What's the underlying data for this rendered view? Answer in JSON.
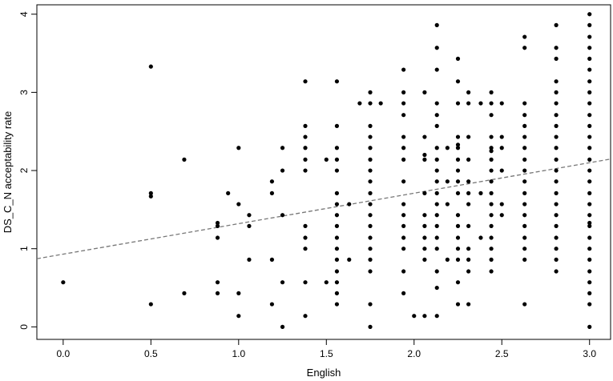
{
  "chart_data": {
    "type": "scatter",
    "title": "",
    "xlabel": "English",
    "ylabel": "DS_C_N acceptability rate",
    "xlim": [
      -0.15,
      3.12
    ],
    "ylim": [
      -0.16,
      4.12
    ],
    "x_ticks": [
      0.0,
      0.5,
      1.0,
      1.5,
      2.0,
      2.5,
      3.0
    ],
    "x_tick_labels": [
      "0.0",
      "0.5",
      "1.0",
      "1.5",
      "2.0",
      "2.5",
      "3.0"
    ],
    "y_ticks": [
      0,
      1,
      2,
      3,
      4
    ],
    "y_tick_labels": [
      "0",
      "1",
      "2",
      "3",
      "4"
    ],
    "grid": false,
    "regression_line": {
      "style": "dashed",
      "color": "#777777",
      "intercept": 0.93,
      "slope": 0.39
    },
    "points_color": "#000000",
    "points": [
      [
        0.0,
        0.57
      ],
      [
        0.5,
        3.33
      ],
      [
        0.5,
        1.71
      ],
      [
        0.5,
        1.67
      ],
      [
        0.5,
        0.29
      ],
      [
        0.69,
        2.14
      ],
      [
        0.69,
        0.43
      ],
      [
        0.88,
        1.33
      ],
      [
        0.88,
        1.29
      ],
      [
        0.88,
        1.14
      ],
      [
        0.88,
        0.57
      ],
      [
        0.88,
        0.43
      ],
      [
        0.94,
        1.71
      ],
      [
        1.0,
        2.29
      ],
      [
        1.0,
        1.57
      ],
      [
        1.0,
        0.43
      ],
      [
        1.0,
        0.14
      ],
      [
        1.06,
        1.43
      ],
      [
        1.06,
        1.29
      ],
      [
        1.06,
        0.86
      ],
      [
        1.19,
        1.86
      ],
      [
        1.19,
        1.71
      ],
      [
        1.19,
        0.86
      ],
      [
        1.19,
        0.29
      ],
      [
        1.25,
        2.29
      ],
      [
        1.25,
        2.0
      ],
      [
        1.25,
        1.43
      ],
      [
        1.25,
        0.57
      ],
      [
        1.25,
        0.0
      ],
      [
        1.38,
        3.14
      ],
      [
        1.38,
        2.57
      ],
      [
        1.38,
        2.43
      ],
      [
        1.38,
        2.29
      ],
      [
        1.38,
        2.14
      ],
      [
        1.38,
        2.0
      ],
      [
        1.38,
        1.29
      ],
      [
        1.38,
        1.14
      ],
      [
        1.38,
        1.0
      ],
      [
        1.38,
        0.57
      ],
      [
        1.38,
        0.14
      ],
      [
        1.5,
        2.14
      ],
      [
        1.5,
        0.57
      ],
      [
        1.56,
        3.14
      ],
      [
        1.56,
        2.57
      ],
      [
        1.56,
        2.29
      ],
      [
        1.56,
        2.14
      ],
      [
        1.56,
        2.0
      ],
      [
        1.56,
        1.71
      ],
      [
        1.56,
        1.57
      ],
      [
        1.56,
        1.43
      ],
      [
        1.56,
        1.29
      ],
      [
        1.56,
        1.14
      ],
      [
        1.56,
        1.0
      ],
      [
        1.56,
        0.86
      ],
      [
        1.56,
        0.71
      ],
      [
        1.56,
        0.57
      ],
      [
        1.56,
        0.43
      ],
      [
        1.56,
        0.29
      ],
      [
        1.63,
        1.57
      ],
      [
        1.63,
        0.86
      ],
      [
        1.69,
        2.86
      ],
      [
        1.75,
        3.0
      ],
      [
        1.75,
        2.86
      ],
      [
        1.75,
        2.57
      ],
      [
        1.75,
        2.43
      ],
      [
        1.75,
        2.29
      ],
      [
        1.75,
        2.14
      ],
      [
        1.75,
        2.0
      ],
      [
        1.75,
        1.86
      ],
      [
        1.75,
        1.71
      ],
      [
        1.75,
        1.57
      ],
      [
        1.75,
        1.43
      ],
      [
        1.75,
        1.29
      ],
      [
        1.75,
        1.14
      ],
      [
        1.75,
        1.0
      ],
      [
        1.75,
        0.86
      ],
      [
        1.75,
        0.71
      ],
      [
        1.75,
        0.29
      ],
      [
        1.75,
        0.0
      ],
      [
        1.81,
        2.86
      ],
      [
        1.94,
        3.29
      ],
      [
        1.94,
        3.0
      ],
      [
        1.94,
        2.86
      ],
      [
        1.94,
        2.71
      ],
      [
        1.94,
        2.43
      ],
      [
        1.94,
        2.29
      ],
      [
        1.94,
        2.14
      ],
      [
        1.94,
        1.86
      ],
      [
        1.94,
        1.57
      ],
      [
        1.94,
        1.43
      ],
      [
        1.94,
        1.29
      ],
      [
        1.94,
        1.14
      ],
      [
        1.94,
        1.0
      ],
      [
        1.94,
        0.71
      ],
      [
        1.94,
        0.43
      ],
      [
        2.0,
        0.14
      ],
      [
        2.06,
        3.0
      ],
      [
        2.06,
        2.43
      ],
      [
        2.06,
        2.2
      ],
      [
        2.06,
        2.14
      ],
      [
        2.06,
        1.71
      ],
      [
        2.06,
        1.43
      ],
      [
        2.06,
        1.29
      ],
      [
        2.06,
        1.14
      ],
      [
        2.06,
        1.0
      ],
      [
        2.06,
        0.86
      ],
      [
        2.06,
        0.14
      ],
      [
        2.13,
        3.86
      ],
      [
        2.13,
        3.57
      ],
      [
        2.13,
        3.29
      ],
      [
        2.13,
        2.86
      ],
      [
        2.13,
        2.71
      ],
      [
        2.13,
        2.57
      ],
      [
        2.13,
        2.29
      ],
      [
        2.13,
        2.14
      ],
      [
        2.13,
        2.0
      ],
      [
        2.13,
        1.86
      ],
      [
        2.13,
        1.71
      ],
      [
        2.13,
        1.57
      ],
      [
        2.13,
        1.43
      ],
      [
        2.13,
        1.29
      ],
      [
        2.13,
        1.14
      ],
      [
        2.13,
        1.0
      ],
      [
        2.13,
        0.71
      ],
      [
        2.13,
        0.5
      ],
      [
        2.13,
        0.14
      ],
      [
        2.19,
        2.29
      ],
      [
        2.19,
        1.86
      ],
      [
        2.19,
        1.57
      ],
      [
        2.19,
        0.86
      ],
      [
        2.25,
        3.43
      ],
      [
        2.25,
        3.14
      ],
      [
        2.25,
        2.86
      ],
      [
        2.25,
        2.43
      ],
      [
        2.25,
        2.33
      ],
      [
        2.25,
        2.29
      ],
      [
        2.25,
        2.14
      ],
      [
        2.25,
        2.0
      ],
      [
        2.25,
        1.86
      ],
      [
        2.25,
        1.71
      ],
      [
        2.25,
        1.43
      ],
      [
        2.25,
        1.29
      ],
      [
        2.25,
        1.14
      ],
      [
        2.25,
        1.0
      ],
      [
        2.25,
        0.86
      ],
      [
        2.25,
        0.57
      ],
      [
        2.25,
        0.29
      ],
      [
        2.31,
        3.0
      ],
      [
        2.31,
        2.86
      ],
      [
        2.31,
        2.43
      ],
      [
        2.31,
        2.14
      ],
      [
        2.31,
        1.86
      ],
      [
        2.31,
        1.71
      ],
      [
        2.31,
        1.57
      ],
      [
        2.31,
        1.29
      ],
      [
        2.31,
        1.0
      ],
      [
        2.31,
        0.86
      ],
      [
        2.31,
        0.71
      ],
      [
        2.31,
        0.29
      ],
      [
        2.38,
        2.86
      ],
      [
        2.38,
        1.71
      ],
      [
        2.38,
        1.14
      ],
      [
        2.44,
        3.0
      ],
      [
        2.44,
        2.86
      ],
      [
        2.44,
        2.71
      ],
      [
        2.44,
        2.43
      ],
      [
        2.44,
        2.29
      ],
      [
        2.44,
        2.25
      ],
      [
        2.44,
        2.14
      ],
      [
        2.44,
        2.0
      ],
      [
        2.44,
        1.86
      ],
      [
        2.44,
        1.71
      ],
      [
        2.44,
        1.57
      ],
      [
        2.44,
        1.43
      ],
      [
        2.44,
        1.29
      ],
      [
        2.44,
        1.14
      ],
      [
        2.44,
        1.0
      ],
      [
        2.44,
        0.86
      ],
      [
        2.44,
        0.71
      ],
      [
        2.5,
        2.86
      ],
      [
        2.5,
        2.43
      ],
      [
        2.5,
        2.29
      ],
      [
        2.5,
        2.0
      ],
      [
        2.5,
        1.57
      ],
      [
        2.5,
        1.43
      ],
      [
        2.63,
        3.71
      ],
      [
        2.63,
        3.57
      ],
      [
        2.63,
        2.86
      ],
      [
        2.63,
        2.71
      ],
      [
        2.63,
        2.57
      ],
      [
        2.63,
        2.43
      ],
      [
        2.63,
        2.29
      ],
      [
        2.63,
        2.14
      ],
      [
        2.63,
        2.0
      ],
      [
        2.63,
        1.86
      ],
      [
        2.63,
        1.71
      ],
      [
        2.63,
        1.57
      ],
      [
        2.63,
        1.43
      ],
      [
        2.63,
        1.29
      ],
      [
        2.63,
        1.14
      ],
      [
        2.63,
        1.0
      ],
      [
        2.63,
        0.86
      ],
      [
        2.63,
        0.29
      ],
      [
        2.81,
        3.86
      ],
      [
        2.81,
        3.57
      ],
      [
        2.81,
        3.43
      ],
      [
        2.81,
        3.14
      ],
      [
        2.81,
        3.0
      ],
      [
        2.81,
        2.86
      ],
      [
        2.81,
        2.71
      ],
      [
        2.81,
        2.57
      ],
      [
        2.81,
        2.43
      ],
      [
        2.81,
        2.29
      ],
      [
        2.81,
        2.14
      ],
      [
        2.81,
        2.0
      ],
      [
        2.81,
        1.86
      ],
      [
        2.81,
        1.71
      ],
      [
        2.81,
        1.57
      ],
      [
        2.81,
        1.43
      ],
      [
        2.81,
        1.29
      ],
      [
        2.81,
        1.14
      ],
      [
        2.81,
        1.0
      ],
      [
        2.81,
        0.86
      ],
      [
        2.81,
        0.71
      ],
      [
        3.0,
        4.0
      ],
      [
        3.0,
        3.86
      ],
      [
        3.0,
        3.71
      ],
      [
        3.0,
        3.57
      ],
      [
        3.0,
        3.43
      ],
      [
        3.0,
        3.29
      ],
      [
        3.0,
        3.14
      ],
      [
        3.0,
        3.0
      ],
      [
        3.0,
        2.86
      ],
      [
        3.0,
        2.71
      ],
      [
        3.0,
        2.57
      ],
      [
        3.0,
        2.43
      ],
      [
        3.0,
        2.29
      ],
      [
        3.0,
        2.14
      ],
      [
        3.0,
        2.0
      ],
      [
        3.0,
        1.86
      ],
      [
        3.0,
        1.71
      ],
      [
        3.0,
        1.57
      ],
      [
        3.0,
        1.43
      ],
      [
        3.0,
        1.33
      ],
      [
        3.0,
        1.29
      ],
      [
        3.0,
        1.14
      ],
      [
        3.0,
        1.0
      ],
      [
        3.0,
        0.86
      ],
      [
        3.0,
        0.71
      ],
      [
        3.0,
        0.57
      ],
      [
        3.0,
        0.43
      ],
      [
        3.0,
        0.29
      ],
      [
        3.0,
        0.0
      ]
    ]
  }
}
